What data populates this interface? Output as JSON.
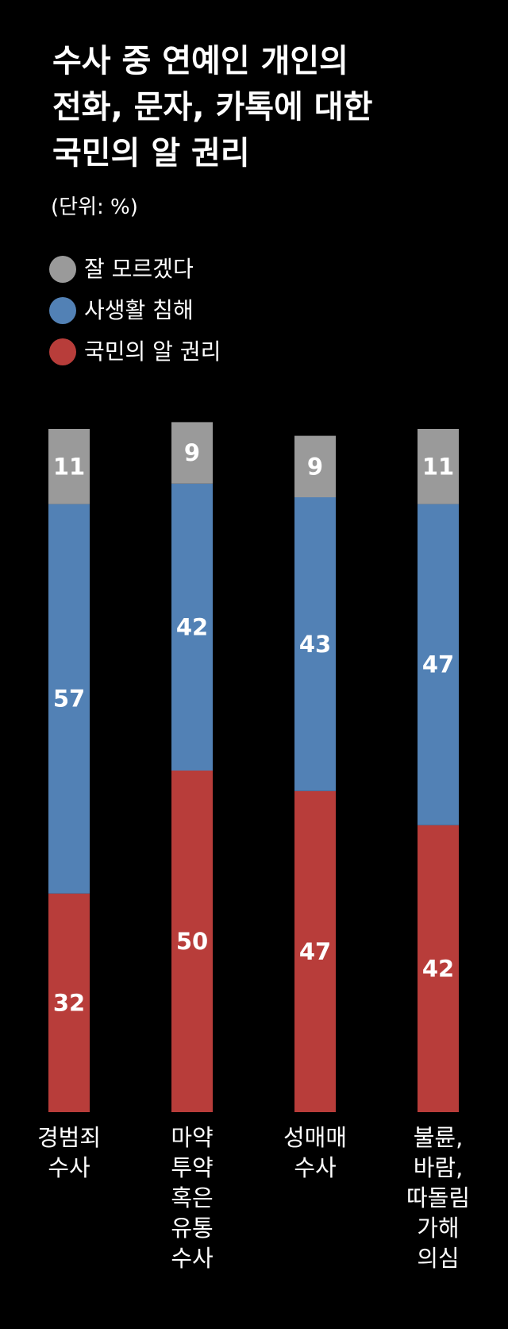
{
  "chart_data": {
    "type": "bar",
    "stacked": true,
    "title_lines": [
      "수사 중 연예인 개인의",
      "전화, 문자, 카톡에 대한",
      "국민의 알 권리"
    ],
    "unit": "(단위: %)",
    "legend": [
      {
        "label": "잘 모르겠다",
        "color": "#9a9a9a"
      },
      {
        "label": "사생활 침해",
        "color": "#5281b5"
      },
      {
        "label": "국민의 알 권리",
        "color": "#b83d3a"
      }
    ],
    "categories": [
      "경범죄\n수사",
      "마약\n투약\n혹은\n유통\n수사",
      "성매매\n수사",
      "불륜,\n바람,\n따돌림\n가해\n의심"
    ],
    "series": [
      {
        "name": "국민의 알 권리",
        "color": "#b83d3a",
        "values": [
          32,
          50,
          47,
          42
        ]
      },
      {
        "name": "사생활 침해",
        "color": "#5281b5",
        "values": [
          57,
          42,
          43,
          47
        ]
      },
      {
        "name": "잘 모르겠다",
        "color": "#9a9a9a",
        "values": [
          11,
          9,
          9,
          11
        ]
      }
    ],
    "ylim": [
      0,
      100
    ],
    "legend_position": "top-left",
    "grid": false
  }
}
